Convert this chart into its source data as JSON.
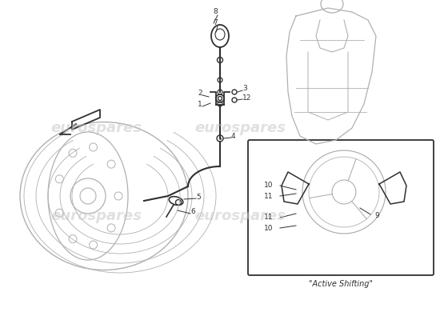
{
  "bg_color": "#ffffff",
  "watermark_color": "#c8c8c8",
  "watermark_text": "eurospares",
  "line_color": "#303030",
  "faded_color": "#b0b0b0",
  "label_fontsize": 6.5,
  "watermark_alpha": 0.55,
  "active_shifting_label": "\"Active Shifting\""
}
